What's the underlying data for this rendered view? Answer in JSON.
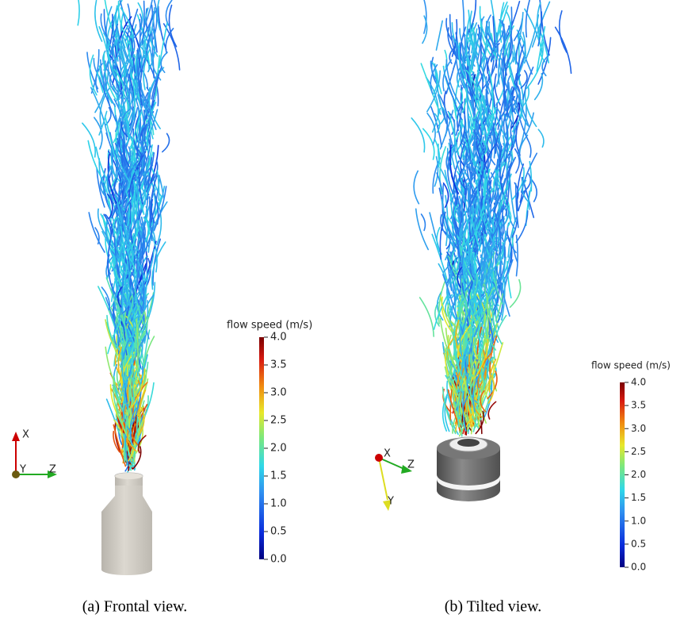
{
  "panels": [
    {
      "caption": "(a)  Frontal view.",
      "colorbar": {
        "title": "flow speed (m/s)",
        "ticks": [
          {
            "value": 0,
            "label": "0.0"
          },
          {
            "value": 0.5,
            "label": "0.5"
          },
          {
            "value": 1,
            "label": "1.0"
          },
          {
            "value": 1.5,
            "label": "1.5"
          },
          {
            "value": 2,
            "label": "2.0"
          },
          {
            "value": 2.5,
            "label": "2.5"
          },
          {
            "value": 3,
            "label": "3.0"
          },
          {
            "value": 3.5,
            "label": "3.5"
          },
          {
            "value": 4,
            "label": "4.0"
          }
        ]
      },
      "axes": [
        "X",
        "Y",
        "Z"
      ]
    },
    {
      "caption": "(b)  Tilted view.",
      "colorbar": {
        "title": "flow speed (m/s)",
        "ticks": [
          {
            "value": 0,
            "label": "0.0"
          },
          {
            "value": 0.5,
            "label": "0.5"
          },
          {
            "value": 1,
            "label": "1.0"
          },
          {
            "value": 1.5,
            "label": "1.5"
          },
          {
            "value": 2,
            "label": "2.0"
          },
          {
            "value": 2.5,
            "label": "2.5"
          },
          {
            "value": 3,
            "label": "3.0"
          },
          {
            "value": 3.5,
            "label": "3.5"
          },
          {
            "value": 4,
            "label": "4.0"
          }
        ]
      },
      "axes": [
        "X",
        "Z",
        "Y"
      ]
    }
  ]
}
